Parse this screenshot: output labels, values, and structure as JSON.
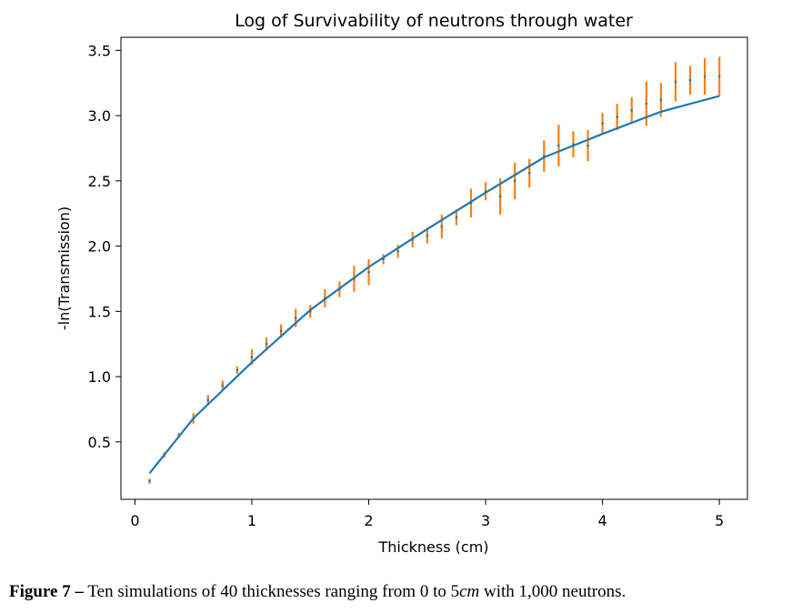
{
  "chart_data": {
    "type": "scatter",
    "title": "Log of Survivability of neutrons through water",
    "xlabel": "Thickness (cm)",
    "ylabel": "-ln(Transmission)",
    "xlim": [
      -0.12,
      5.24
    ],
    "ylim": [
      0.06,
      3.6
    ],
    "xticks": [
      0,
      1,
      2,
      3,
      4,
      5
    ],
    "yticks": [
      0.5,
      1.0,
      1.5,
      2.0,
      2.5,
      3.0,
      3.5
    ],
    "xtick_labels": [
      "0",
      "1",
      "2",
      "3",
      "4",
      "5"
    ],
    "ytick_labels": [
      "0.5",
      "1.0",
      "1.5",
      "2.0",
      "2.5",
      "3.0",
      "3.5"
    ],
    "grid": false,
    "colors": {
      "errorbar": "#ff7f0e",
      "fit": "#1f77b4",
      "points": "#1f77b4"
    },
    "series": [
      {
        "kind": "errorbar",
        "x": [
          0.125,
          0.25,
          0.375,
          0.5,
          0.625,
          0.75,
          0.875,
          1.0,
          1.125,
          1.25,
          1.375,
          1.5,
          1.625,
          1.75,
          1.875,
          2.0,
          2.125,
          2.25,
          2.375,
          2.5,
          2.625,
          2.75,
          2.875,
          3.0,
          3.125,
          3.25,
          3.375,
          3.5,
          3.625,
          3.75,
          3.875,
          4.0,
          4.125,
          4.25,
          4.375,
          4.5,
          4.625,
          4.75,
          4.875,
          5.0
        ],
        "y": [
          0.2,
          0.4,
          0.55,
          0.68,
          0.82,
          0.93,
          1.05,
          1.15,
          1.25,
          1.35,
          1.45,
          1.5,
          1.6,
          1.67,
          1.75,
          1.8,
          1.9,
          1.96,
          2.05,
          2.08,
          2.15,
          2.22,
          2.33,
          2.42,
          2.38,
          2.5,
          2.56,
          2.69,
          2.77,
          2.78,
          2.77,
          2.94,
          2.99,
          3.04,
          3.09,
          3.12,
          3.26,
          3.27,
          3.3,
          3.3
        ],
        "err": [
          0.02,
          0.02,
          0.02,
          0.04,
          0.04,
          0.04,
          0.03,
          0.06,
          0.05,
          0.05,
          0.07,
          0.05,
          0.07,
          0.06,
          0.1,
          0.1,
          0.04,
          0.05,
          0.06,
          0.06,
          0.09,
          0.06,
          0.11,
          0.07,
          0.14,
          0.14,
          0.11,
          0.12,
          0.16,
          0.1,
          0.12,
          0.08,
          0.1,
          0.1,
          0.17,
          0.13,
          0.15,
          0.11,
          0.14,
          0.15
        ]
      },
      {
        "kind": "line",
        "x": [
          0.125,
          0.5,
          1.0,
          1.5,
          2.0,
          2.5,
          3.0,
          3.5,
          4.0,
          4.5,
          5.0
        ],
        "y": [
          0.26,
          0.68,
          1.11,
          1.51,
          1.84,
          2.13,
          2.41,
          2.68,
          2.86,
          3.03,
          3.15
        ]
      }
    ]
  },
  "caption": {
    "label": "Figure 7 –",
    "text_before": "Ten simulations of 40 thicknesses ranging from 0 to 5",
    "unit": "cm",
    "text_after": "with 1,000 neutrons."
  }
}
